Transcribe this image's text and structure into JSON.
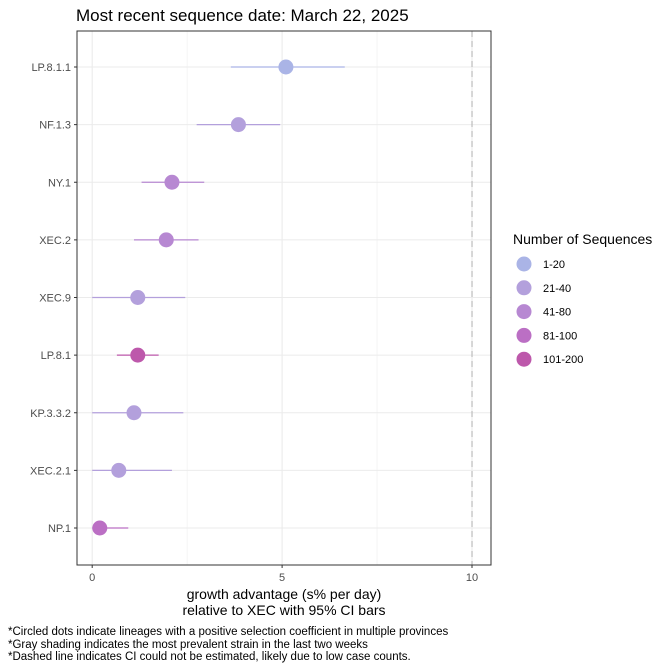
{
  "chart_data": {
    "type": "scatter",
    "title": "Most recent sequence date: March 22, 2025",
    "xlabel_line1": "growth advantage (s% per day)",
    "xlabel_line2": "relative to  XEC  with 95% CI bars",
    "xlim": [
      -0.4,
      10.5
    ],
    "xticks": [
      0,
      5,
      10
    ],
    "reference_line_x": 10,
    "grid": true,
    "legend": {
      "title": "Number of Sequences",
      "position": "right",
      "entries": [
        {
          "label": "1-20",
          "color": "#aab4e6"
        },
        {
          "label": "21-40",
          "color": "#b3a0dc"
        },
        {
          "label": "41-80",
          "color": "#b788d2"
        },
        {
          "label": "81-100",
          "color": "#bb6fc4"
        },
        {
          "label": "101-200",
          "color": "#bd58ab"
        }
      ]
    },
    "points": [
      {
        "lineage": "LP.8.1.1",
        "estimate": 5.1,
        "lower": 3.65,
        "upper": 6.65,
        "group": "1-20"
      },
      {
        "lineage": "NF.1.3",
        "estimate": 3.85,
        "lower": 2.75,
        "upper": 4.95,
        "group": "21-40"
      },
      {
        "lineage": "NY.1",
        "estimate": 2.1,
        "lower": 1.3,
        "upper": 2.95,
        "group": "41-80"
      },
      {
        "lineage": "XEC.2",
        "estimate": 1.95,
        "lower": 1.1,
        "upper": 2.8,
        "group": "41-80"
      },
      {
        "lineage": "XEC.9",
        "estimate": 1.2,
        "lower": 0.0,
        "upper": 2.45,
        "group": "21-40"
      },
      {
        "lineage": "LP.8.1",
        "estimate": 1.2,
        "lower": 0.65,
        "upper": 1.75,
        "group": "101-200"
      },
      {
        "lineage": "KP.3.3.2",
        "estimate": 1.1,
        "lower": 0.0,
        "upper": 2.4,
        "group": "21-40"
      },
      {
        "lineage": "XEC.2.1",
        "estimate": 0.7,
        "lower": 0.0,
        "upper": 2.1,
        "group": "21-40"
      },
      {
        "lineage": "NP.1",
        "estimate": 0.2,
        "lower": 0.0,
        "upper": 0.95,
        "group": "81-100"
      }
    ]
  },
  "footnotes": [
    "*Circled dots indicate lineages with a positive selection coefficient in multiple provinces",
    "*Gray shading indicates the most prevalent strain in the last two weeks",
    "*Dashed line indicates CI could not be estimated, likely due to low case counts."
  ]
}
